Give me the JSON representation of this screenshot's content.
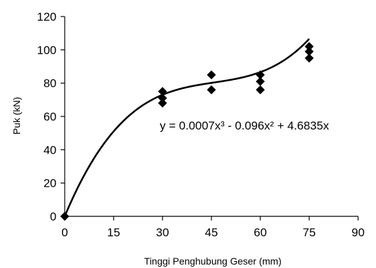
{
  "chart_data": {
    "type": "scatter",
    "title": "",
    "xlabel": "Tinggi Penghubung Geser (mm)",
    "ylabel": "Puk (kN)",
    "xlim": [
      0,
      90
    ],
    "ylim": [
      0,
      120
    ],
    "xticks": [
      "0",
      "15",
      "30",
      "45",
      "60",
      "75",
      "90"
    ],
    "yticks": [
      "0",
      "20",
      "40",
      "60",
      "80",
      "100",
      "120"
    ],
    "grid": false,
    "legend": "none",
    "marker": "diamond",
    "series": [
      {
        "points": [
          {
            "x": 0,
            "y": 0
          },
          {
            "x": 30,
            "y": 68
          },
          {
            "x": 30,
            "y": 71
          },
          {
            "x": 30,
            "y": 75
          },
          {
            "x": 45,
            "y": 76
          },
          {
            "x": 45,
            "y": 85
          },
          {
            "x": 60,
            "y": 76
          },
          {
            "x": 60,
            "y": 81
          },
          {
            "x": 60,
            "y": 85
          },
          {
            "x": 75,
            "y": 95
          },
          {
            "x": 75,
            "y": 99
          },
          {
            "x": 75,
            "y": 102
          }
        ]
      }
    ],
    "trendline": {
      "type": "polynomial",
      "coefficients": {
        "a3": 0.0007,
        "a2": -0.096,
        "a1": 4.6835,
        "a0": 0
      },
      "equation_label": "y = 0.0007x³ - 0.096x² + 4.6835x",
      "x_range": [
        0,
        75
      ]
    }
  }
}
